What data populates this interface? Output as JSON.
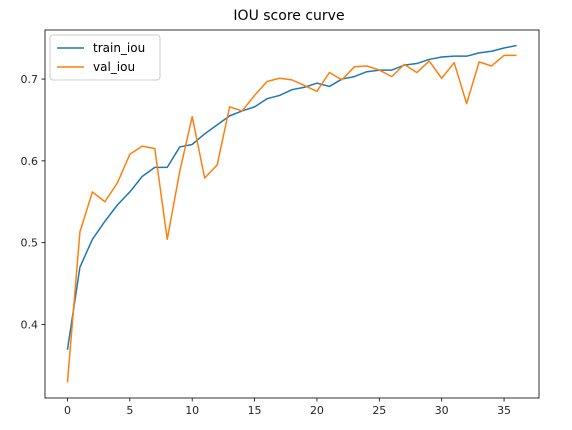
{
  "chart_data": {
    "type": "line",
    "title": "IOU score curve",
    "xlabel": "",
    "ylabel": "",
    "xlim": [
      -1.8,
      37.8
    ],
    "ylim": [
      0.31,
      0.76
    ],
    "x_ticks": [
      0,
      5,
      10,
      15,
      20,
      25,
      30,
      35
    ],
    "y_ticks": [
      0.4,
      0.5,
      0.6,
      0.7
    ],
    "y_tick_labels": [
      "0.4",
      "0.5",
      "0.6",
      "0.7"
    ],
    "grid": false,
    "legend_position": "upper-left",
    "x": [
      0,
      1,
      2,
      3,
      4,
      5,
      6,
      7,
      8,
      9,
      10,
      11,
      12,
      13,
      14,
      15,
      16,
      17,
      18,
      19,
      20,
      21,
      22,
      23,
      24,
      25,
      26,
      27,
      28,
      29,
      30,
      31,
      32,
      33,
      34,
      35,
      36
    ],
    "series": [
      {
        "name": "train_iou",
        "color": "#1f77b4",
        "values": [
          0.369,
          0.47,
          0.504,
          0.526,
          0.546,
          0.562,
          0.581,
          0.592,
          0.592,
          0.617,
          0.62,
          0.633,
          0.644,
          0.655,
          0.661,
          0.666,
          0.676,
          0.68,
          0.687,
          0.69,
          0.695,
          0.691,
          0.7,
          0.703,
          0.709,
          0.711,
          0.711,
          0.717,
          0.719,
          0.724,
          0.727,
          0.728,
          0.728,
          0.732,
          0.734,
          0.738,
          0.741
        ]
      },
      {
        "name": "val_iou",
        "color": "#ff7f0e",
        "values": [
          0.329,
          0.513,
          0.562,
          0.55,
          0.573,
          0.608,
          0.618,
          0.615,
          0.504,
          0.587,
          0.654,
          0.579,
          0.595,
          0.666,
          0.661,
          0.68,
          0.697,
          0.701,
          0.699,
          0.692,
          0.685,
          0.708,
          0.699,
          0.715,
          0.716,
          0.711,
          0.703,
          0.718,
          0.708,
          0.722,
          0.701,
          0.72,
          0.67,
          0.721,
          0.716,
          0.729,
          0.729
        ]
      }
    ]
  }
}
